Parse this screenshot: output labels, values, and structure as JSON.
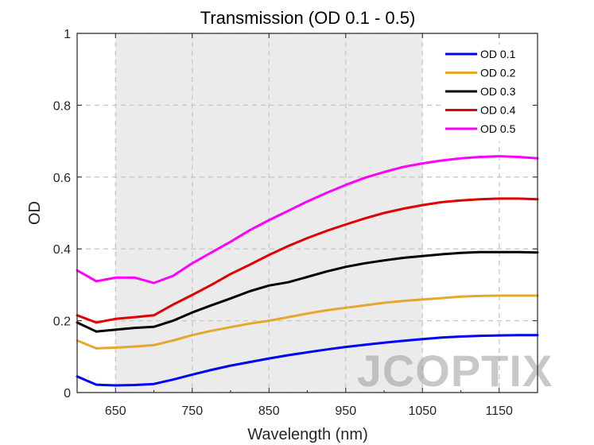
{
  "chart_data": {
    "type": "line",
    "title": "Transmission (OD 0.1 - 0.5)",
    "xlabel": "Wavelength (nm)",
    "ylabel": "OD",
    "xlim": [
      600,
      1200
    ],
    "ylim": [
      0,
      1
    ],
    "xticks": [
      650,
      750,
      850,
      950,
      1050,
      1150
    ],
    "yticks": [
      0,
      0.2,
      0.4,
      0.6,
      0.8,
      1
    ],
    "ytick_labels": [
      "0",
      "0.2",
      "0.4",
      "0.6",
      "0.8",
      "1"
    ],
    "grid": true,
    "highlight_band": [
      650,
      1050
    ],
    "legend_position": "top-right",
    "x": [
      600,
      625,
      650,
      675,
      700,
      725,
      750,
      775,
      800,
      825,
      850,
      875,
      900,
      925,
      950,
      975,
      1000,
      1025,
      1050,
      1075,
      1100,
      1125,
      1150,
      1175,
      1200
    ],
    "series": [
      {
        "name": "OD 0.1",
        "color": "#0000ff",
        "values": [
          0.045,
          0.022,
          0.02,
          0.021,
          0.024,
          0.036,
          0.05,
          0.063,
          0.075,
          0.085,
          0.095,
          0.104,
          0.112,
          0.12,
          0.127,
          0.133,
          0.139,
          0.144,
          0.149,
          0.153,
          0.156,
          0.158,
          0.159,
          0.16,
          0.16
        ]
      },
      {
        "name": "OD 0.2",
        "color": "#e6a82a",
        "values": [
          0.145,
          0.123,
          0.125,
          0.128,
          0.132,
          0.145,
          0.16,
          0.172,
          0.182,
          0.192,
          0.2,
          0.21,
          0.22,
          0.229,
          0.236,
          0.243,
          0.25,
          0.255,
          0.259,
          0.263,
          0.267,
          0.269,
          0.27,
          0.27,
          0.27
        ]
      },
      {
        "name": "OD 0.3",
        "color": "#000000",
        "values": [
          0.195,
          0.17,
          0.175,
          0.18,
          0.183,
          0.2,
          0.223,
          0.243,
          0.262,
          0.282,
          0.298,
          0.307,
          0.322,
          0.337,
          0.35,
          0.36,
          0.368,
          0.375,
          0.38,
          0.385,
          0.389,
          0.391,
          0.391,
          0.391,
          0.39
        ]
      },
      {
        "name": "OD 0.4",
        "color": "#e00000",
        "values": [
          0.215,
          0.195,
          0.205,
          0.21,
          0.215,
          0.245,
          0.272,
          0.3,
          0.33,
          0.356,
          0.383,
          0.408,
          0.43,
          0.45,
          0.468,
          0.485,
          0.5,
          0.512,
          0.522,
          0.53,
          0.535,
          0.538,
          0.54,
          0.54,
          0.538
        ]
      },
      {
        "name": "OD 0.5",
        "color": "#ff00ff",
        "values": [
          0.34,
          0.31,
          0.32,
          0.32,
          0.305,
          0.325,
          0.36,
          0.39,
          0.42,
          0.452,
          0.48,
          0.506,
          0.532,
          0.556,
          0.578,
          0.598,
          0.614,
          0.628,
          0.638,
          0.646,
          0.652,
          0.656,
          0.658,
          0.656,
          0.652
        ]
      }
    ]
  },
  "watermark": {
    "text": "JCOPTIX"
  }
}
